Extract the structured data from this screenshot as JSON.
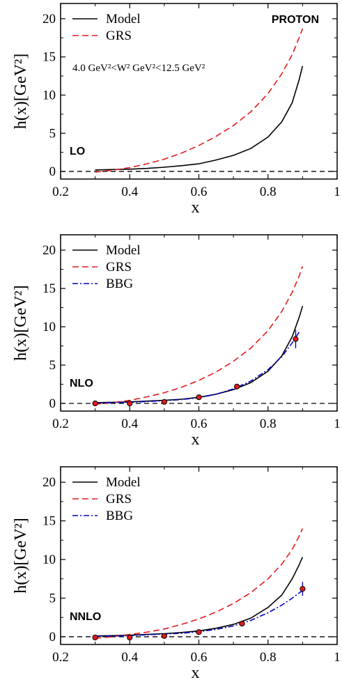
{
  "chart_data": [
    {
      "type": "line",
      "panel_label": "LO",
      "corner_label": "PROTON",
      "annotation": "4.0 GeV²<W² GeV²<12.5 GeV²",
      "xlabel": "x",
      "ylabel": "h(x)[GeV²]",
      "xlim": [
        0.2,
        1.0
      ],
      "ylim": [
        -1,
        22
      ],
      "xticks": [
        "0.2",
        "0.4",
        "0.6",
        "0.8",
        "1"
      ],
      "yticks": [
        "0",
        "5",
        "10",
        "15",
        "20"
      ],
      "zero_line": true,
      "legend_position": "top-left",
      "series": [
        {
          "name": "Model",
          "style": "solid",
          "color": "#000000",
          "x": [
            0.3,
            0.35,
            0.4,
            0.45,
            0.5,
            0.55,
            0.6,
            0.65,
            0.7,
            0.75,
            0.8,
            0.84,
            0.87,
            0.89,
            0.9
          ],
          "y": [
            0.2,
            0.25,
            0.3,
            0.4,
            0.55,
            0.75,
            1.0,
            1.5,
            2.1,
            3.0,
            4.5,
            6.5,
            9.0,
            12.0,
            13.8
          ]
        },
        {
          "name": "GRS",
          "style": "dashed",
          "color": "#e41a1c",
          "x": [
            0.3,
            0.35,
            0.4,
            0.45,
            0.5,
            0.55,
            0.6,
            0.65,
            0.7,
            0.75,
            0.8,
            0.84,
            0.87,
            0.89,
            0.9
          ],
          "y": [
            -0.1,
            0.15,
            0.5,
            1.0,
            1.6,
            2.4,
            3.4,
            4.6,
            6.0,
            7.8,
            10.2,
            12.8,
            15.3,
            17.5,
            18.7
          ]
        }
      ]
    },
    {
      "type": "line",
      "panel_label": "NLO",
      "xlabel": "x",
      "ylabel": "h(x)[GeV²]",
      "xlim": [
        0.2,
        1.0
      ],
      "ylim": [
        -1,
        22
      ],
      "xticks": [
        "0.2",
        "0.4",
        "0.6",
        "0.8",
        "1"
      ],
      "yticks": [
        "0",
        "5",
        "10",
        "15",
        "20"
      ],
      "zero_line": true,
      "legend_position": "top-left",
      "series": [
        {
          "name": "Model",
          "style": "solid",
          "color": "#000000",
          "x": [
            0.3,
            0.35,
            0.4,
            0.45,
            0.5,
            0.55,
            0.6,
            0.65,
            0.7,
            0.75,
            0.8,
            0.84,
            0.87,
            0.89,
            0.9
          ],
          "y": [
            0.1,
            0.15,
            0.2,
            0.3,
            0.4,
            0.55,
            0.8,
            1.2,
            1.8,
            2.7,
            4.2,
            6.2,
            8.7,
            11.2,
            12.7
          ]
        },
        {
          "name": "GRS",
          "style": "dashed",
          "color": "#e41a1c",
          "x": [
            0.3,
            0.35,
            0.4,
            0.45,
            0.5,
            0.55,
            0.6,
            0.65,
            0.7,
            0.75,
            0.8,
            0.84,
            0.87,
            0.89,
            0.9
          ],
          "y": [
            -0.1,
            0.1,
            0.4,
            0.85,
            1.4,
            2.1,
            3.0,
            4.1,
            5.5,
            7.2,
            9.5,
            12.0,
            14.5,
            16.6,
            17.9
          ]
        },
        {
          "name": "BBG",
          "style": "dashdot",
          "color": "#0000cc",
          "x": [
            0.3,
            0.35,
            0.4,
            0.45,
            0.5,
            0.55,
            0.6,
            0.65,
            0.7,
            0.75,
            0.8,
            0.84,
            0.87,
            0.89
          ],
          "y": [
            0.05,
            0.1,
            0.15,
            0.25,
            0.35,
            0.5,
            0.75,
            1.2,
            1.9,
            2.9,
            4.4,
            6.1,
            7.9,
            9.3
          ]
        }
      ],
      "points": [
        {
          "x": 0.3,
          "y": 0.0,
          "err": 0.2
        },
        {
          "x": 0.4,
          "y": 0.0,
          "err": 0.2
        },
        {
          "x": 0.5,
          "y": 0.2,
          "err": 0.2
        },
        {
          "x": 0.6,
          "y": 0.8,
          "err": 0.2
        },
        {
          "x": 0.71,
          "y": 2.2,
          "err": 0.3
        },
        {
          "x": 0.88,
          "y": 8.4,
          "err": 1.2
        }
      ]
    },
    {
      "type": "line",
      "panel_label": "NNLO",
      "xlabel": "x",
      "ylabel": "h(x)[GeV²]",
      "xlim": [
        0.2,
        1.0
      ],
      "ylim": [
        -1,
        22
      ],
      "xticks": [
        "0.2",
        "0.4",
        "0.6",
        "0.8",
        "1"
      ],
      "yticks": [
        "0",
        "5",
        "10",
        "15",
        "20"
      ],
      "zero_line": true,
      "legend_position": "top-left",
      "series": [
        {
          "name": "Model",
          "style": "solid",
          "color": "#000000",
          "x": [
            0.3,
            0.35,
            0.4,
            0.45,
            0.5,
            0.55,
            0.6,
            0.65,
            0.7,
            0.75,
            0.8,
            0.84,
            0.87,
            0.89,
            0.9
          ],
          "y": [
            0.1,
            0.15,
            0.2,
            0.3,
            0.4,
            0.55,
            0.75,
            1.1,
            1.6,
            2.4,
            3.8,
            5.4,
            7.5,
            9.3,
            10.3
          ]
        },
        {
          "name": "GRS",
          "style": "dashed",
          "color": "#e41a1c",
          "x": [
            0.3,
            0.35,
            0.4,
            0.45,
            0.5,
            0.55,
            0.6,
            0.65,
            0.7,
            0.75,
            0.8,
            0.84,
            0.87,
            0.89,
            0.9
          ],
          "y": [
            -0.2,
            0.0,
            0.3,
            0.6,
            1.0,
            1.6,
            2.3,
            3.2,
            4.3,
            5.7,
            7.5,
            9.4,
            11.3,
            13.0,
            14.0
          ]
        },
        {
          "name": "BBG",
          "style": "dashdot",
          "color": "#0000cc",
          "x": [
            0.3,
            0.35,
            0.4,
            0.45,
            0.5,
            0.55,
            0.6,
            0.65,
            0.7,
            0.75,
            0.8,
            0.84,
            0.87,
            0.9
          ],
          "y": [
            0.05,
            0.1,
            0.15,
            0.25,
            0.35,
            0.45,
            0.65,
            0.95,
            1.4,
            2.1,
            3.1,
            4.1,
            5.0,
            6.0
          ]
        }
      ],
      "points": [
        {
          "x": 0.3,
          "y": -0.1,
          "err": 0.2
        },
        {
          "x": 0.4,
          "y": -0.1,
          "err": 0.2
        },
        {
          "x": 0.5,
          "y": 0.1,
          "err": 0.2
        },
        {
          "x": 0.6,
          "y": 0.6,
          "err": 0.2
        },
        {
          "x": 0.725,
          "y": 1.7,
          "err": 0.3
        },
        {
          "x": 0.9,
          "y": 6.2,
          "err": 0.9
        }
      ]
    }
  ]
}
